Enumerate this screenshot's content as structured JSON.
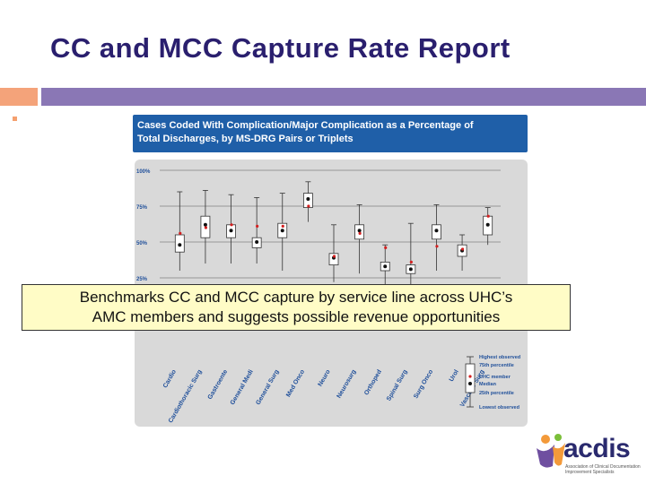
{
  "slide": {
    "title": "CC and MCC Capture Rate Report",
    "caption_line1": "Benchmarks CC and MCC capture by service line across UHC’s",
    "caption_line2": "AMC members and suggests possible revenue opportunities"
  },
  "figure": {
    "header_line1": "Cases Coded With Complication/Major Complication as a Percentage of",
    "header_line2": "Total Discharges, by MS-DRG Pairs or Triplets"
  },
  "legend": {
    "highest": "Highest observed",
    "p75": "75th percentile",
    "member": "UHC member",
    "median": "Median",
    "p25": "25th percentile",
    "lowest": "Lowest observed"
  },
  "logo": {
    "word": "acdis",
    "tagline": "Association of Clinical Documentation Improvement Specialists"
  },
  "colors": {
    "title": "#2a1f6e",
    "header_bg": "#1f5fa8",
    "panel_bg": "#d9d9d9",
    "member_marker": "#d42020",
    "accent_orange": "#f4a37a",
    "accent_purple": "#8a77b5",
    "caption_bg": "#fffcc6"
  },
  "chart_data": {
    "type": "boxplot",
    "y_ticks": [
      "100%",
      "75%",
      "50%",
      "25%"
    ],
    "ylim": [
      0,
      100
    ],
    "grid": true,
    "categories": [
      "Cardiology",
      "Cardiothoracic Surgery",
      "Gastroenterology",
      "General Medicine",
      "General Surgery",
      "Med Oncology",
      "Neurology",
      "Neurosurgery",
      "Orthopedics",
      "Spinal Surgery",
      "Surg Oncology",
      "Urology",
      "Vascular Surgery"
    ],
    "category_labels_visible": [
      "Cardio",
      "Cardiothoracic Surg",
      "Gastroente",
      "General Medi",
      "General Surg",
      "Med Onco",
      "Neuro",
      "Neurosurg",
      "Orthoped",
      "Spinal Surg",
      "Surg Onco",
      "Urol",
      "Vascular Surg"
    ],
    "series": [
      {
        "category": "Cardiology",
        "lowest": 30,
        "p25": 43,
        "median": 48,
        "p75": 55,
        "highest": 85,
        "member": 56
      },
      {
        "category": "Cardiothoracic Surgery",
        "lowest": 35,
        "p25": 53,
        "median": 62,
        "p75": 68,
        "highest": 86,
        "member": 60
      },
      {
        "category": "Gastroenterology",
        "lowest": 35,
        "p25": 53,
        "median": 58,
        "p75": 62,
        "highest": 83,
        "member": 62
      },
      {
        "category": "General Medicine",
        "lowest": 35,
        "p25": 46,
        "median": 50,
        "p75": 53,
        "highest": 81,
        "member": 61
      },
      {
        "category": "General Surgery",
        "lowest": 30,
        "p25": 53,
        "median": 58,
        "p75": 63,
        "highest": 84,
        "member": 61
      },
      {
        "category": "Med Oncology",
        "lowest": 64,
        "p25": 74,
        "median": 80,
        "p75": 84,
        "highest": 92,
        "member": 75
      },
      {
        "category": "Neurology",
        "lowest": 22,
        "p25": 34,
        "median": 39,
        "p75": 42,
        "highest": 62,
        "member": 40
      },
      {
        "category": "Neurosurgery",
        "lowest": 28,
        "p25": 52,
        "median": 58,
        "p75": 62,
        "highest": 76,
        "member": 56
      },
      {
        "category": "Orthopedics",
        "lowest": 20,
        "p25": 30,
        "median": 33,
        "p75": 36,
        "highest": 48,
        "member": 46
      },
      {
        "category": "Spinal Surgery",
        "lowest": 20,
        "p25": 28,
        "median": 31,
        "p75": 34,
        "highest": 63,
        "member": 36
      },
      {
        "category": "Surg Oncology",
        "lowest": 30,
        "p25": 52,
        "median": 58,
        "p75": 62,
        "highest": 76,
        "member": 47
      },
      {
        "category": "Urology",
        "lowest": 30,
        "p25": 40,
        "median": 44,
        "p75": 48,
        "highest": 55,
        "member": 45
      },
      {
        "category": "Vascular Surgery",
        "lowest": 48,
        "p25": 55,
        "median": 62,
        "p75": 68,
        "highest": 74,
        "member": 68
      }
    ]
  }
}
